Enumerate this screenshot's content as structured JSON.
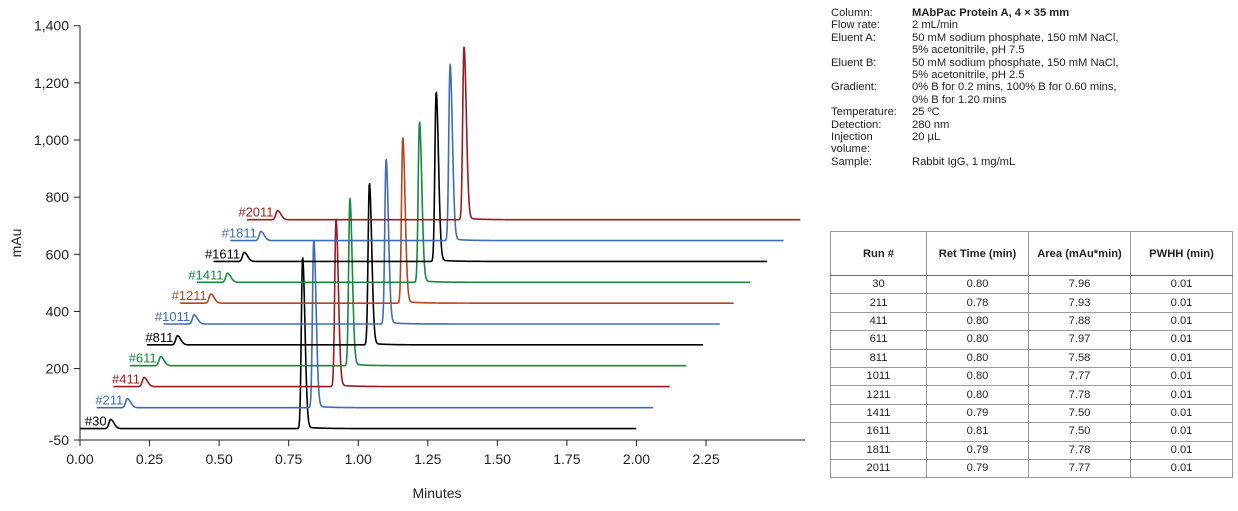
{
  "chart_data": {
    "type": "line",
    "xlabel": "Minutes",
    "ylabel": "mAu",
    "xlim": [
      0,
      2.35
    ],
    "ylim": [
      -50,
      1400
    ],
    "x_ticks": [
      "0.00",
      "0.25",
      "0.50",
      "0.75",
      "1.00",
      "1.25",
      "1.50",
      "1.75",
      "2.00",
      "2.25"
    ],
    "y_ticks": [
      "-50",
      "200",
      "400",
      "600",
      "800",
      "1,000",
      "1,200",
      "1,400"
    ],
    "y_tick_values": [
      -50,
      200,
      400,
      600,
      800,
      1000,
      1200,
      1400
    ],
    "x_tick_values": [
      0,
      0.25,
      0.5,
      0.75,
      1.0,
      1.25,
      1.5,
      1.75,
      2.0,
      2.25
    ],
    "series": [
      {
        "name": "#30",
        "color": "#000000",
        "start": 0.0,
        "end": 2.0,
        "baseline": 0,
        "small_peak": 0.11,
        "main_peak": 0.8,
        "peak_top": 585
      },
      {
        "name": "#211",
        "color": "#3f6db5",
        "start": 0.06,
        "end": 2.06,
        "baseline": 73,
        "small_peak": 0.17,
        "main_peak": 0.84,
        "peak_top": 648
      },
      {
        "name": "#411",
        "color": "#9b1b1f",
        "start": 0.12,
        "end": 2.12,
        "baseline": 147,
        "small_peak": 0.23,
        "main_peak": 0.92,
        "peak_top": 720
      },
      {
        "name": "#611",
        "color": "#138a3e",
        "start": 0.18,
        "end": 2.18,
        "baseline": 220,
        "small_peak": 0.29,
        "main_peak": 0.97,
        "peak_top": 790
      },
      {
        "name": "#811",
        "color": "#000000",
        "start": 0.24,
        "end": 2.24,
        "baseline": 293,
        "small_peak": 0.35,
        "main_peak": 1.04,
        "peak_top": 845
      },
      {
        "name": "#1011",
        "color": "#3f6db5",
        "start": 0.3,
        "end": 2.3,
        "baseline": 366,
        "small_peak": 0.41,
        "main_peak": 1.1,
        "peak_top": 930
      },
      {
        "name": "#1211",
        "color": "#b5441f",
        "start": 0.36,
        "end": 2.35,
        "baseline": 439,
        "small_peak": 0.47,
        "main_peak": 1.16,
        "peak_top": 1005
      },
      {
        "name": "#1411",
        "color": "#138a3e",
        "start": 0.42,
        "end": 2.41,
        "baseline": 512,
        "small_peak": 0.53,
        "main_peak": 1.22,
        "peak_top": 1060
      },
      {
        "name": "#1611",
        "color": "#000000",
        "start": 0.48,
        "end": 2.47,
        "baseline": 585,
        "small_peak": 0.59,
        "main_peak": 1.28,
        "peak_top": 1165
      },
      {
        "name": "#1811",
        "color": "#3f6db5",
        "start": 0.54,
        "end": 2.53,
        "baseline": 658,
        "small_peak": 0.65,
        "main_peak": 1.33,
        "peak_top": 1260
      },
      {
        "name": "#2011",
        "color": "#9b1b1f",
        "start": 0.6,
        "end": 2.59,
        "baseline": 731,
        "small_peak": 0.71,
        "main_peak": 1.38,
        "peak_top": 1325
      }
    ]
  },
  "conditions": [
    {
      "key": "Column:",
      "value": "MAbPac Protein A, 4 × 35 mm",
      "bold": true
    },
    {
      "key": "Flow rate:",
      "value": "2 mL/min"
    },
    {
      "key": "Eluent A:",
      "value": "50 mM sodium phosphate, 150 mM NaCl,"
    },
    {
      "key": "",
      "value": "5% acetonitrile, pH 7.5"
    },
    {
      "key": "Eluent B:",
      "value": "50 mM sodium phosphate, 150 mM NaCl,"
    },
    {
      "key": "",
      "value": "5% acetonitrile, pH 2.5"
    },
    {
      "key": "Gradient:",
      "value": "0% B for 0.2 mins, 100% B for 0.60 mins,"
    },
    {
      "key": "",
      "value": "0% B for 1.20 mins"
    },
    {
      "key": "Temperature:",
      "value": "25 ºC"
    },
    {
      "key": "Detection:",
      "value": "280 nm"
    },
    {
      "key": "Injection volume:",
      "value": "20 µL"
    },
    {
      "key": "Sample:",
      "value": "Rabbit IgG, 1 mg/mL"
    }
  ],
  "table": {
    "headers": [
      "Run #",
      "Ret Time (min)",
      "Area (mAu*min)",
      "PWHH (min)"
    ],
    "rows": [
      [
        "30",
        "0.80",
        "7.96",
        "0.01"
      ],
      [
        "211",
        "0.78",
        "7.93",
        "0.01"
      ],
      [
        "411",
        "0.80",
        "7.88",
        "0.01"
      ],
      [
        "611",
        "0.80",
        "7.97",
        "0.01"
      ],
      [
        "811",
        "0.80",
        "7.58",
        "0.01"
      ],
      [
        "1011",
        "0.80",
        "7.77",
        "0.01"
      ],
      [
        "1211",
        "0.80",
        "7.78",
        "0.01"
      ],
      [
        "1411",
        "0.79",
        "7.50",
        "0.01"
      ],
      [
        "1611",
        "0.81",
        "7.50",
        "0.01"
      ],
      [
        "1811",
        "0.79",
        "7.78",
        "0.01"
      ],
      [
        "2011",
        "0.79",
        "7.77",
        "0.01"
      ]
    ]
  }
}
